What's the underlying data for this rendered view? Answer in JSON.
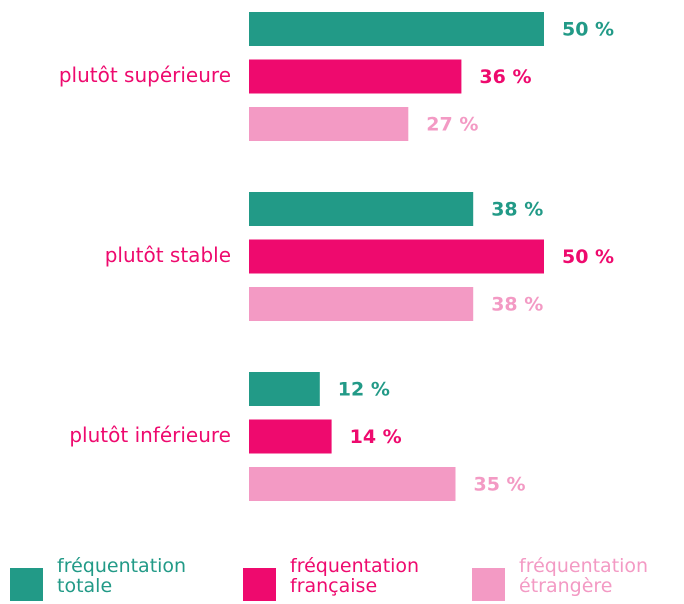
{
  "chart_data": {
    "type": "hbar",
    "categories": [
      "plutôt supérieure",
      "plutôt stable",
      "plutôt inférieure"
    ],
    "series": [
      {
        "name": "fréquentation totale",
        "color": "#229a87",
        "values": [
          50,
          38,
          12
        ],
        "value_labels": [
          "50 %",
          "38 %",
          "12 %"
        ]
      },
      {
        "name": "fréquentation française",
        "color": "#ee0a6e",
        "values": [
          36,
          50,
          14
        ],
        "value_labels": [
          "36 %",
          "50 %",
          "14 %"
        ]
      },
      {
        "name": "fréquentation étrangère",
        "color": "#f39ac4",
        "values": [
          27,
          38,
          35
        ],
        "value_labels": [
          "27 %",
          "38 %",
          "35 %"
        ]
      }
    ],
    "legend": "bottom"
  }
}
